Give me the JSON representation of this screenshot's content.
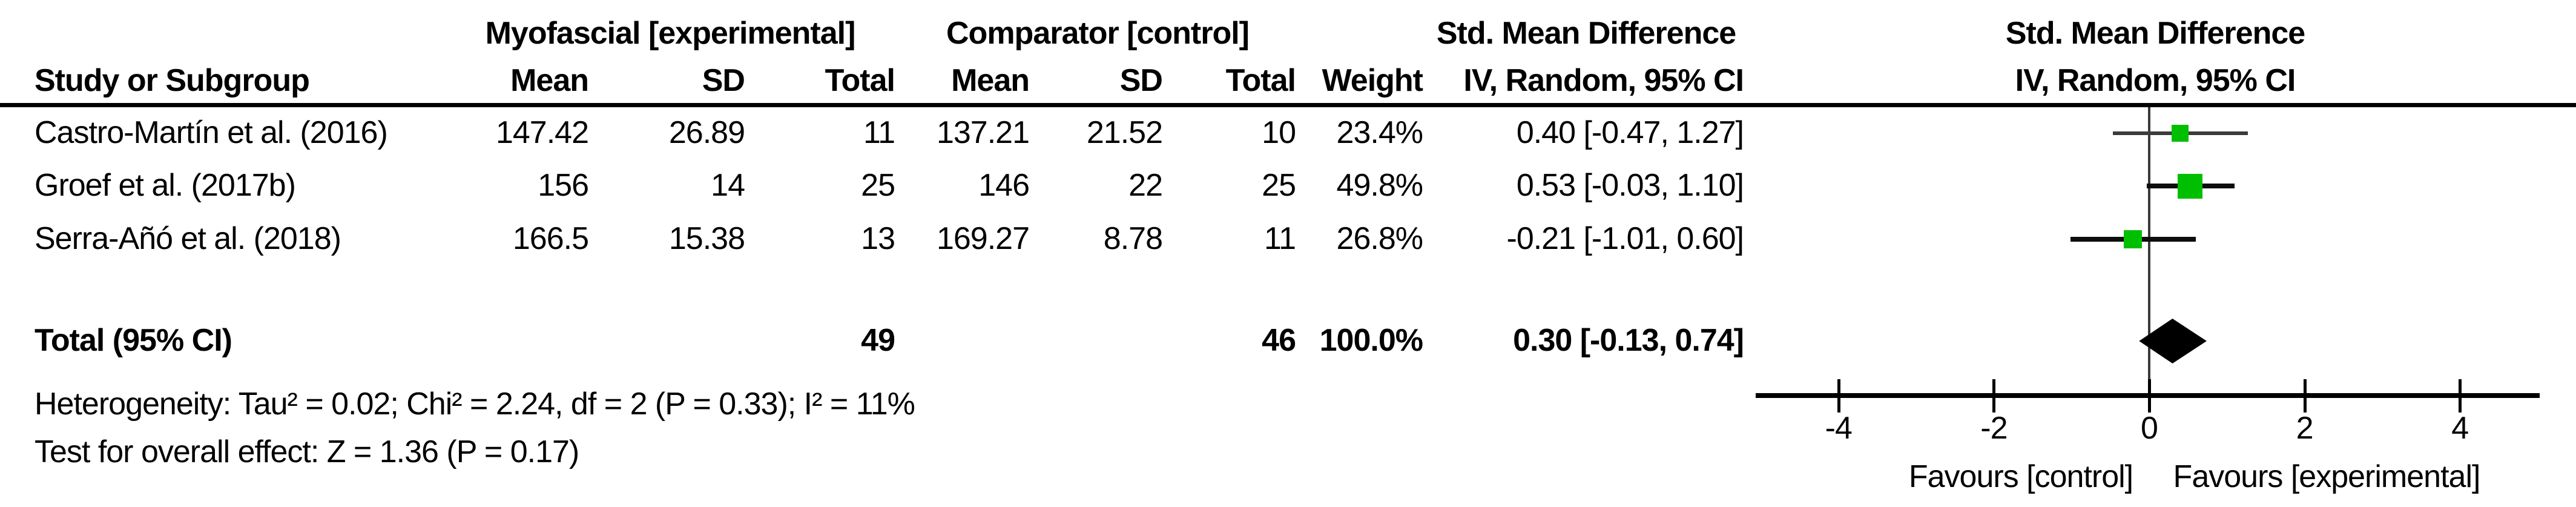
{
  "table": {
    "group_headers": {
      "experimental": "Myofascial [experimental]",
      "control": "Comparator [control]",
      "smd": "Std. Mean Difference"
    },
    "columns": {
      "study": "Study or Subgroup",
      "mean_exp": "Mean",
      "sd_exp": "SD",
      "total_exp": "Total",
      "mean_ctrl": "Mean",
      "sd_ctrl": "SD",
      "total_ctrl": "Total",
      "weight": "Weight",
      "ci": "IV, Random, 95% CI"
    },
    "rows": [
      {
        "study": "Castro-Martín et al. (2016)",
        "mean_e": "147.42",
        "sd_e": "26.89",
        "total_e": "11",
        "mean_c": "137.21",
        "sd_c": "21.52",
        "total_c": "10",
        "weight": "23.4%",
        "ci_text": "0.40 [-0.47, 1.27]"
      },
      {
        "study": "Groef et al. (2017b)",
        "mean_e": "156",
        "sd_e": "14",
        "total_e": "25",
        "mean_c": "146",
        "sd_c": "22",
        "total_c": "25",
        "weight": "49.8%",
        "ci_text": "0.53 [-0.03, 1.10]"
      },
      {
        "study": "Serra-Añó et al. (2018)",
        "mean_e": "166.5",
        "sd_e": "15.38",
        "total_e": "13",
        "mean_c": "169.27",
        "sd_c": "8.78",
        "total_c": "11",
        "weight": "26.8%",
        "ci_text": "-0.21 [-1.01, 0.60]"
      }
    ],
    "total_row": {
      "label": "Total (95% CI)",
      "total_e": "49",
      "total_c": "46",
      "weight": "100.0%",
      "ci_text": "0.30 [-0.13, 0.74]"
    },
    "footnotes": {
      "heterogeneity": "Heterogeneity: Tau² = 0.02; Chi² = 2.24, df = 2 (P = 0.33); I² = 11%",
      "overall_effect": "Test for overall effect: Z = 1.36 (P = 0.17)"
    }
  },
  "plot": {
    "header_line1": "Std. Mean Difference",
    "header_line2": "IV, Random, 95% CI",
    "axis_tick_labels": [
      "-4",
      "-2",
      "0",
      "2",
      "4"
    ],
    "favours_left": "Favours [control]",
    "favours_right": "Favours [experimental]"
  },
  "chart_data": {
    "type": "forest",
    "effect_measure": "Std. Mean Difference",
    "method": "IV, Random, 95% CI",
    "studies": [
      {
        "name": "Castro-Martín et al. (2016)",
        "mean_exp": 147.42,
        "sd_exp": 26.89,
        "n_exp": 11,
        "mean_ctrl": 137.21,
        "sd_ctrl": 21.52,
        "n_ctrl": 10,
        "weight_pct": 23.4,
        "smd": 0.4,
        "ci_low": -0.47,
        "ci_high": 1.27
      },
      {
        "name": "Groef et al. (2017b)",
        "mean_exp": 156,
        "sd_exp": 14,
        "n_exp": 25,
        "mean_ctrl": 146,
        "sd_ctrl": 22,
        "n_ctrl": 25,
        "weight_pct": 49.8,
        "smd": 0.53,
        "ci_low": -0.03,
        "ci_high": 1.1
      },
      {
        "name": "Serra-Añó et al. (2018)",
        "mean_exp": 166.5,
        "sd_exp": 15.38,
        "n_exp": 13,
        "mean_ctrl": 169.27,
        "sd_ctrl": 8.78,
        "n_ctrl": 11,
        "weight_pct": 26.8,
        "smd": -0.21,
        "ci_low": -1.01,
        "ci_high": 0.6
      }
    ],
    "total": {
      "n_exp": 49,
      "n_ctrl": 46,
      "weight_pct": 100.0,
      "smd": 0.3,
      "ci_low": -0.13,
      "ci_high": 0.74
    },
    "axis": {
      "min": -5,
      "max": 5,
      "ticks": [
        -4,
        -2,
        0,
        2,
        4
      ]
    },
    "heterogeneity": {
      "tau2": 0.02,
      "chi2": 2.24,
      "df": 2,
      "p": 0.33,
      "i2_pct": 11
    },
    "overall_effect": {
      "z": 1.36,
      "p": 0.17
    },
    "favours_left": "Favours [control]",
    "favours_right": "Favours [experimental]",
    "marker_color": "#00BF00",
    "diamond_color": "#000000"
  }
}
